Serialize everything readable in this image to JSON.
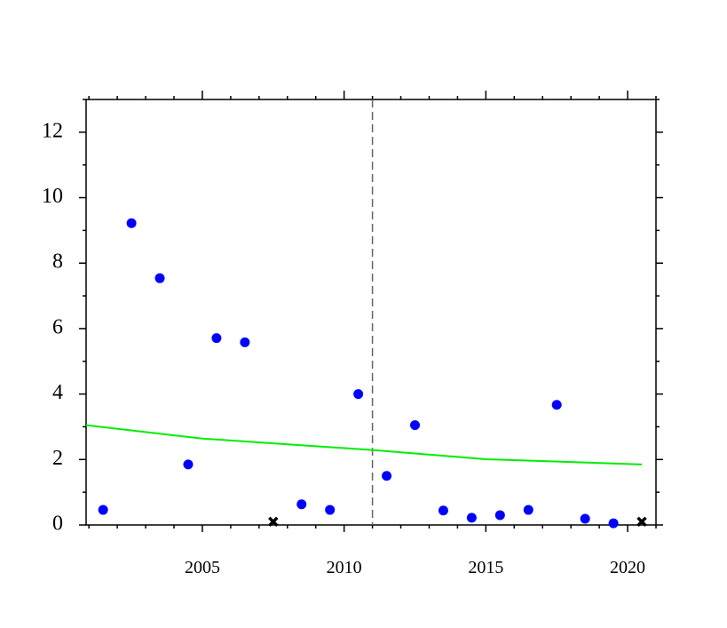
{
  "chart_data": {
    "type": "scatter",
    "xlim": [
      2000.9,
      2021.0
    ],
    "ylim": [
      0,
      13
    ],
    "xticks": [
      2005,
      2010,
      2015,
      2020
    ],
    "xminorticks": [
      2001,
      2002,
      2003,
      2004,
      2006,
      2007,
      2008,
      2009,
      2011,
      2012,
      2013,
      2014,
      2016,
      2017,
      2018,
      2019,
      2021
    ],
    "yticks": [
      0,
      2,
      4,
      6,
      8,
      10,
      12
    ],
    "yminorticks": [
      1,
      3,
      5,
      7,
      9,
      11,
      13
    ],
    "vlines": [
      2011
    ],
    "series": [
      {
        "marker": "circle",
        "color": "#0000ff",
        "x": [
          2001.5,
          2002.5,
          2003.5,
          2004.5,
          2005.5,
          2006.5,
          2008.5,
          2009.5,
          2010.5,
          2011.5,
          2012.5,
          2013.5,
          2014.5,
          2015.5,
          2016.5,
          2017.5,
          2018.5,
          2019.5
        ],
        "values": [
          0.46,
          9.22,
          7.54,
          1.85,
          5.71,
          5.58,
          0.63,
          0.46,
          4.0,
          1.5,
          3.05,
          0.44,
          0.22,
          0.3,
          0.46,
          3.67,
          0.19,
          0.05
        ]
      },
      {
        "marker": "x",
        "color": "#000000",
        "x": [
          2007.5,
          2020.5
        ],
        "values": [
          0.1,
          0.1
        ]
      },
      {
        "marker": "line",
        "color": "#00ee00",
        "x": [
          2000.9,
          2005,
          2011,
          2015,
          2020.5
        ],
        "values": [
          3.05,
          2.64,
          2.29,
          2.01,
          1.85
        ]
      }
    ]
  }
}
